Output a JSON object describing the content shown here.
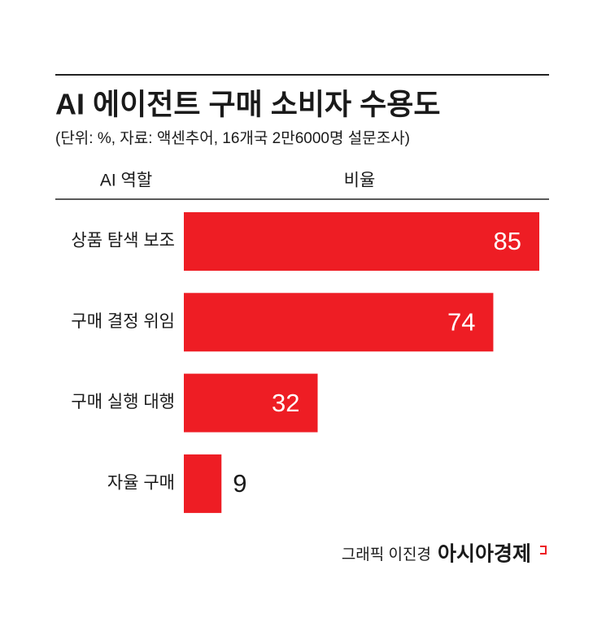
{
  "chart_data": {
    "type": "bar",
    "orientation": "horizontal",
    "title": "AI 에이전트 구매 소비자 수용도",
    "subtitle": "(단위: %, 자료: 액센추어, 16개국 2만6000명 설문조사)",
    "category_header": "AI 역할",
    "value_header": "비율",
    "categories": [
      "상품 탐색 보조",
      "구매 결정 위임",
      "구매 실행 대행",
      "자율 구매"
    ],
    "values": [
      85,
      74,
      32,
      9
    ],
    "color": "#ee1d24",
    "credit": "그래픽 이진경",
    "logo": "아시아경제"
  }
}
